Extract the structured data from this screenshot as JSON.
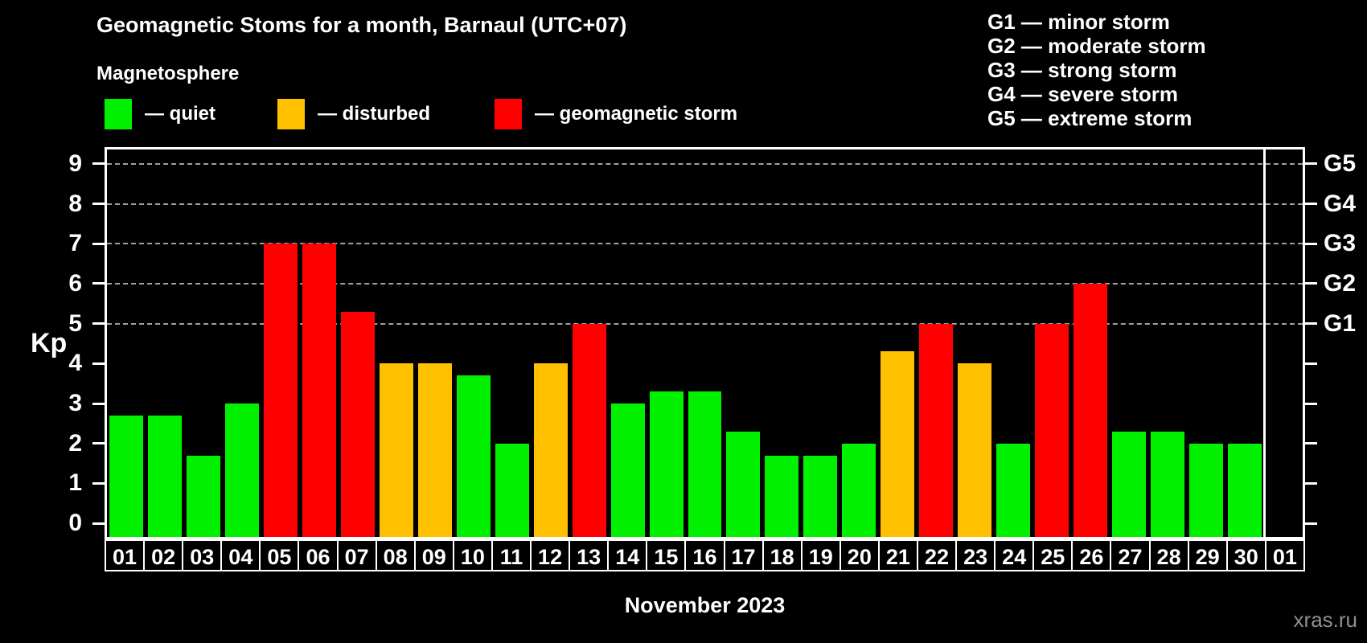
{
  "title": "Geomagnetic Stoms for a month, Barnaul (UTC+07)",
  "legend": {
    "title": "Magnetosphere",
    "items": [
      {
        "name": "quiet",
        "label": "— quiet",
        "color": "#00f000"
      },
      {
        "name": "disturbed",
        "label": "— disturbed",
        "color": "#ffc000"
      },
      {
        "name": "geomagnetic-storm",
        "label": "— geomagnetic storm",
        "color": "#ff0000"
      }
    ]
  },
  "storm_scale": [
    "G1 — minor storm",
    "G2 — moderate storm",
    "G3 — strong storm",
    "G4 — severe storm",
    "G5 — extreme storm"
  ],
  "watermark": "xras.ru",
  "chart_data": {
    "type": "bar",
    "title": "Geomagnetic Stoms for a month, Barnaul (UTC+07)",
    "xlabel": "November 2023",
    "ylabel": "Kp",
    "ylim": [
      -0.34,
      9.36
    ],
    "yticks": [
      0,
      1,
      2,
      3,
      4,
      5,
      6,
      7,
      8,
      9
    ],
    "gridlines": [
      5,
      6,
      7,
      8,
      9
    ],
    "right_axis": [
      {
        "kp": 5,
        "label": "G1"
      },
      {
        "kp": 6,
        "label": "G2"
      },
      {
        "kp": 7,
        "label": "G3"
      },
      {
        "kp": 8,
        "label": "G4"
      },
      {
        "kp": 9,
        "label": "G5"
      }
    ],
    "legend_position": "top-left",
    "grid": true,
    "categories": [
      "01",
      "02",
      "03",
      "04",
      "05",
      "06",
      "07",
      "08",
      "09",
      "10",
      "11",
      "12",
      "13",
      "14",
      "15",
      "16",
      "17",
      "18",
      "19",
      "20",
      "21",
      "22",
      "23",
      "24",
      "25",
      "26",
      "27",
      "28",
      "29",
      "30",
      "01"
    ],
    "values": [
      2.7,
      2.7,
      1.7,
      3.0,
      7.0,
      7.0,
      5.3,
      4.0,
      4.0,
      3.7,
      2.0,
      4.0,
      5.0,
      3.0,
      3.3,
      3.3,
      2.3,
      1.7,
      1.7,
      2.0,
      4.3,
      5.0,
      4.0,
      2.0,
      5.0,
      6.0,
      2.3,
      2.3,
      2.0,
      2.0,
      null
    ],
    "statuses": [
      "quiet",
      "quiet",
      "quiet",
      "quiet",
      "storm",
      "storm",
      "storm",
      "disturbed",
      "disturbed",
      "quiet",
      "quiet",
      "disturbed",
      "storm",
      "quiet",
      "quiet",
      "quiet",
      "quiet",
      "quiet",
      "quiet",
      "quiet",
      "disturbed",
      "storm",
      "disturbed",
      "quiet",
      "storm",
      "storm",
      "quiet",
      "quiet",
      "quiet",
      "quiet",
      null
    ],
    "status_colors": {
      "quiet": "#00f000",
      "disturbed": "#ffc000",
      "storm": "#ff0000"
    }
  }
}
